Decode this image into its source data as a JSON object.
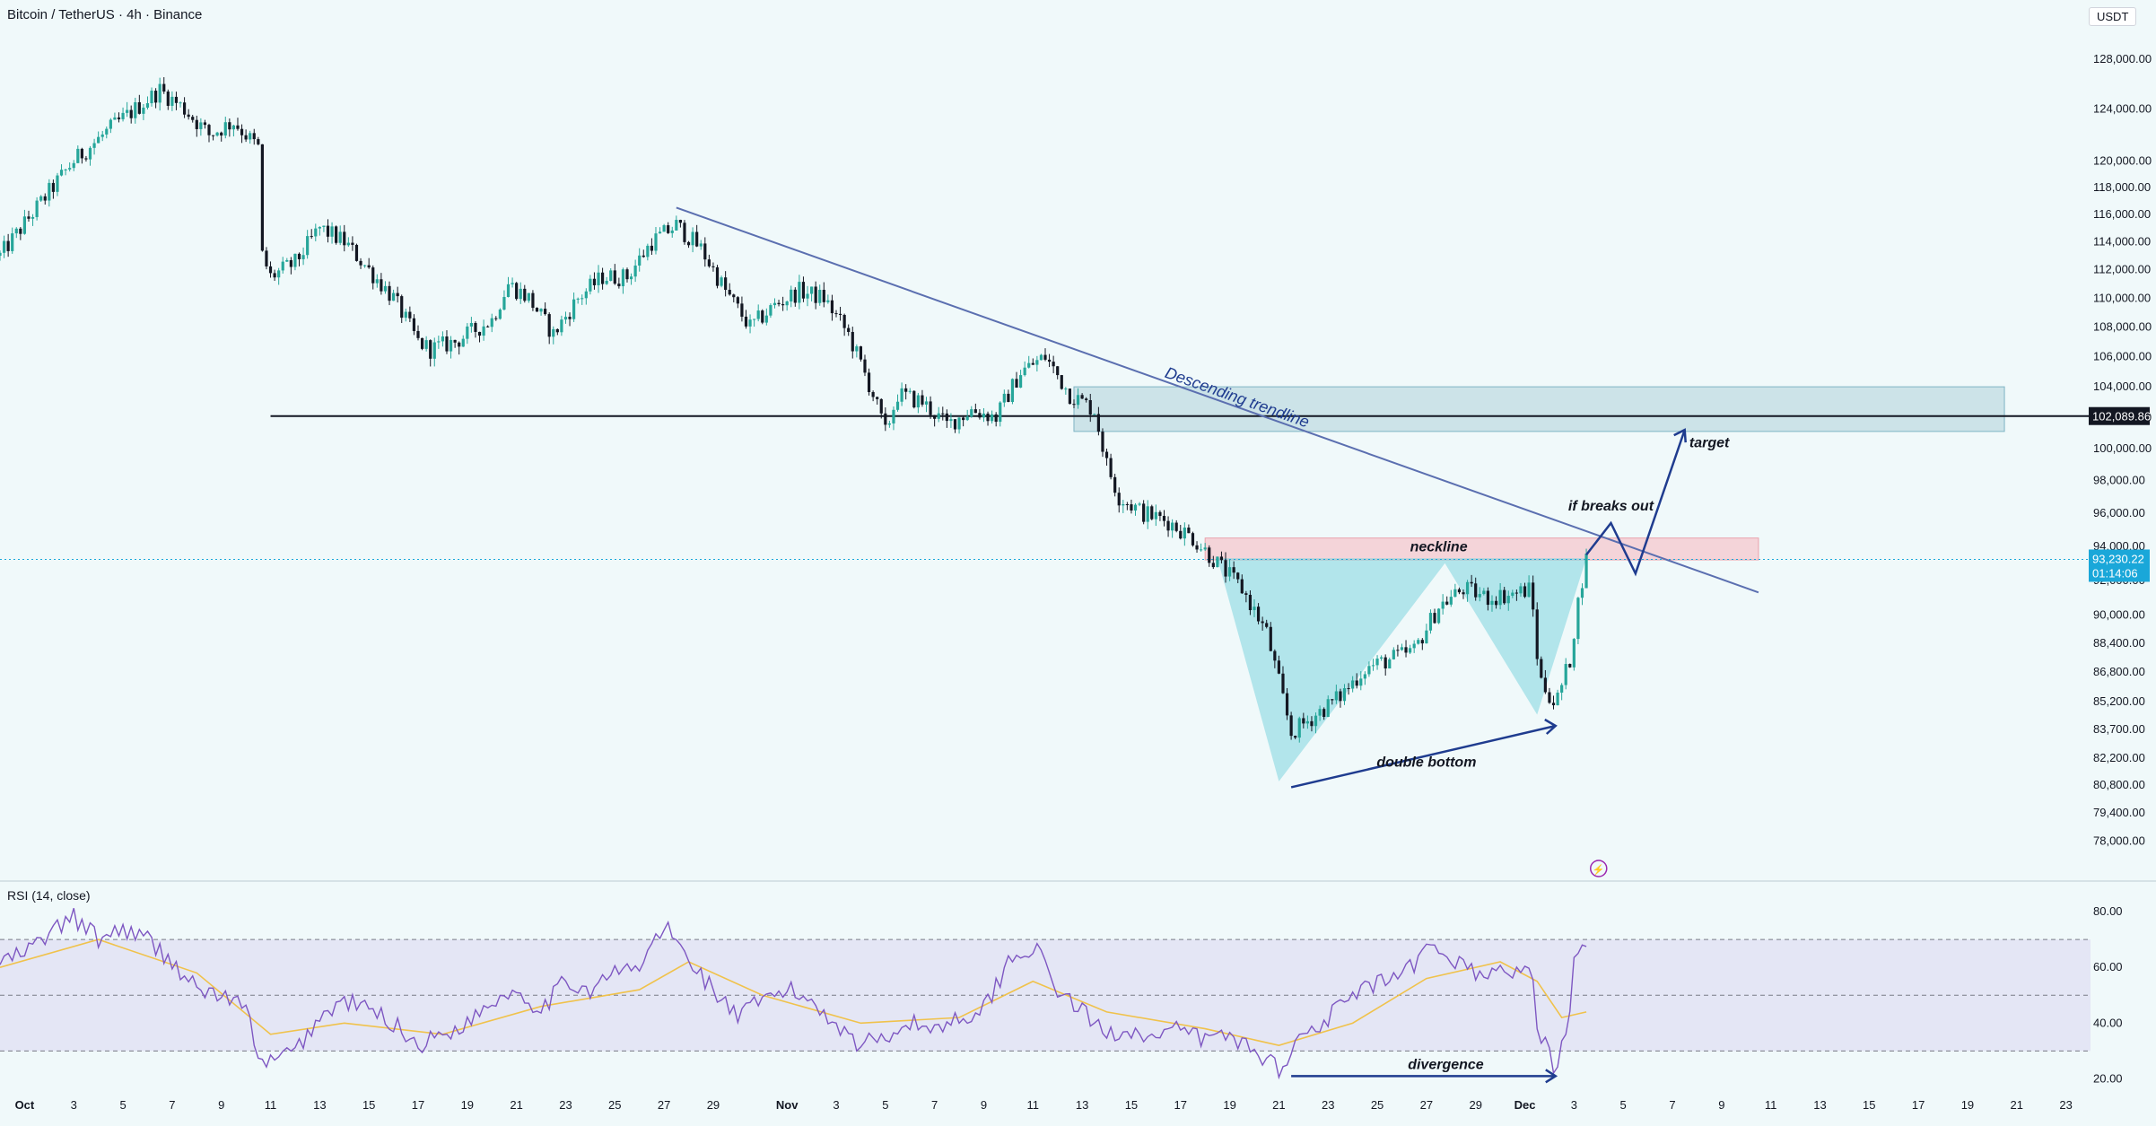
{
  "header": {
    "symbol_line": "Bitcoin / TetherUS · 4h · Binance",
    "currency_button": "USDT"
  },
  "rsi_panel": {
    "title": "RSI (14, close)"
  },
  "colors": {
    "up": "#26a69a",
    "down": "#131722",
    "trendline": "#5b6fb0",
    "annotation": "#1f3c8f",
    "pattern_fill": "#7fd6de",
    "neckline_zone": "#f6c7cd",
    "target_zone": "#9fc7d3",
    "rsi_line": "#7e57c2",
    "rsi_ma": "#f0c24b",
    "rsi_band": "#dcd8f2",
    "price_tag": "#1aa7d9"
  },
  "current_price": {
    "value": "93,230.22",
    "countdown": "01:14:06"
  },
  "support_label": "102,089.86",
  "annotations": {
    "trendline": "Descending trendline",
    "neckline": "neckline",
    "breakout": "if breaks out",
    "target": "target",
    "double_bottom": "double bottom",
    "divergence": "divergence"
  },
  "chart_data": [
    {
      "type": "candlestick",
      "title": "Bitcoin / TetherUS · 4h · Binance",
      "y_axis": {
        "scale": "log",
        "ylim": [
          77000,
          131000
        ],
        "ticks": [
          128000,
          124000,
          120000,
          118000,
          116000,
          114000,
          112000,
          110000,
          108000,
          106000,
          104000,
          102000,
          100000,
          98000,
          96000,
          94000,
          92000,
          90000,
          88400,
          86800,
          85200,
          83700,
          82200,
          80800,
          79400,
          78000
        ],
        "tick_labels": [
          "128,000.00",
          "124,000.00",
          "120,000.00",
          "118,000.00",
          "116,000.00",
          "114,000.00",
          "112,000.00",
          "110,000.00",
          "108,000.00",
          "106,000.00",
          "104,000.00",
          "102,000.00",
          "100,000.00",
          "98,000.00",
          "96,000.00",
          "94,000.00",
          "92,000.00",
          "90,000.00",
          "88,400.00",
          "86,800.00",
          "85,200.00",
          "83,700.00",
          "82,200.00",
          "80,800.00",
          "79,400.00",
          "78,000.00"
        ]
      },
      "x_axis": {
        "start": "2025-09-30",
        "end": "2025-12-24",
        "ticks": [
          "2025-10-01",
          "2025-10-03",
          "2025-10-05",
          "2025-10-07",
          "2025-10-09",
          "2025-10-11",
          "2025-10-13",
          "2025-10-15",
          "2025-10-17",
          "2025-10-19",
          "2025-10-21",
          "2025-10-23",
          "2025-10-25",
          "2025-10-27",
          "2025-10-29",
          "2025-11-01",
          "2025-11-03",
          "2025-11-05",
          "2025-11-07",
          "2025-11-09",
          "2025-11-11",
          "2025-11-13",
          "2025-11-15",
          "2025-11-17",
          "2025-11-19",
          "2025-11-21",
          "2025-11-23",
          "2025-11-25",
          "2025-11-27",
          "2025-11-29",
          "2025-12-01",
          "2025-12-03",
          "2025-12-05",
          "2025-12-07",
          "2025-12-09",
          "2025-12-11",
          "2025-12-13",
          "2025-12-15",
          "2025-12-17",
          "2025-12-19",
          "2025-12-21",
          "2025-12-23"
        ],
        "tick_labels": [
          "Oct",
          "3",
          "5",
          "7",
          "9",
          "11",
          "13",
          "15",
          "17",
          "19",
          "21",
          "23",
          "25",
          "27",
          "29",
          "Nov",
          "3",
          "5",
          "7",
          "9",
          "11",
          "13",
          "15",
          "17",
          "19",
          "21",
          "23",
          "25",
          "27",
          "29",
          "Dec",
          "3",
          "5",
          "7",
          "9",
          "11",
          "13",
          "15",
          "17",
          "19",
          "21",
          "23"
        ]
      },
      "price_path": [
        [
          "2025-09-30 00:00",
          113000
        ],
        [
          "2025-10-01 12:00",
          116500
        ],
        [
          "2025-10-03 00:00",
          120000
        ],
        [
          "2025-10-04 12:00",
          122500
        ],
        [
          "2025-10-06 12:00",
          125500
        ],
        [
          "2025-10-07 12:00",
          124000
        ],
        [
          "2025-10-08 12:00",
          122000
        ],
        [
          "2025-10-09 12:00",
          123000
        ],
        [
          "2025-10-10 12:00",
          121000
        ],
        [
          "2025-10-10 16:00",
          113000
        ],
        [
          "2025-10-11 00:00",
          111500
        ],
        [
          "2025-10-12 00:00",
          112500
        ],
        [
          "2025-10-13 00:00",
          115000
        ],
        [
          "2025-10-14 00:00",
          114000
        ],
        [
          "2025-10-15 00:00",
          112000
        ],
        [
          "2025-10-16 00:00",
          110000
        ],
        [
          "2025-10-17 00:00",
          107000
        ],
        [
          "2025-10-17 12:00",
          106500
        ],
        [
          "2025-10-18 12:00",
          107000
        ],
        [
          "2025-10-20 00:00",
          108500
        ],
        [
          "2025-10-20 16:00",
          111000
        ],
        [
          "2025-10-21 12:00",
          110000
        ],
        [
          "2025-10-22 12:00",
          107500
        ],
        [
          "2025-10-23 12:00",
          110000
        ],
        [
          "2025-10-24 12:00",
          111500
        ],
        [
          "2025-10-25 12:00",
          111500
        ],
        [
          "2025-10-26 12:00",
          114000
        ],
        [
          "2025-10-27 12:00",
          115200
        ],
        [
          "2025-10-28 12:00",
          113500
        ],
        [
          "2025-10-29 12:00",
          110500
        ],
        [
          "2025-10-30 12:00",
          108000
        ],
        [
          "2025-10-31 12:00",
          109500
        ],
        [
          "2025-11-01 12:00",
          110500
        ],
        [
          "2025-11-02 12:00",
          110000
        ],
        [
          "2025-11-03 12:00",
          107500
        ],
        [
          "2025-11-04 12:00",
          103500
        ],
        [
          "2025-11-05 00:00",
          101000
        ],
        [
          "2025-11-05 12:00",
          103500
        ],
        [
          "2025-11-06 12:00",
          103000
        ],
        [
          "2025-11-07 12:00",
          101500
        ],
        [
          "2025-11-08 12:00",
          102500
        ],
        [
          "2025-11-09 12:00",
          102000
        ],
        [
          "2025-11-10 12:00",
          105000
        ],
        [
          "2025-11-11 12:00",
          106000
        ],
        [
          "2025-11-12 12:00",
          103500
        ],
        [
          "2025-11-13 12:00",
          102500
        ],
        [
          "2025-11-14 00:00",
          99000
        ],
        [
          "2025-11-14 12:00",
          97000
        ],
        [
          "2025-11-15 12:00",
          96000
        ],
        [
          "2025-11-16 12:00",
          95500
        ],
        [
          "2025-11-17 12:00",
          94500
        ],
        [
          "2025-11-18 12:00",
          93000
        ],
        [
          "2025-11-19 12:00",
          91500
        ],
        [
          "2025-11-20 12:00",
          89000
        ],
        [
          "2025-11-21 12:00",
          83500
        ],
        [
          "2025-11-22 12:00",
          84500
        ],
        [
          "2025-11-23 12:00",
          85500
        ],
        [
          "2025-11-24 12:00",
          87000
        ],
        [
          "2025-11-25 12:00",
          87500
        ],
        [
          "2025-11-26 12:00",
          88000
        ],
        [
          "2025-11-27 12:00",
          90500
        ],
        [
          "2025-11-28 12:00",
          91500
        ],
        [
          "2025-11-29 12:00",
          91000
        ],
        [
          "2025-11-30 12:00",
          91200
        ],
        [
          "2025-12-01 06:00",
          91500
        ],
        [
          "2025-12-01 14:00",
          86500
        ],
        [
          "2025-12-02 06:00",
          85000
        ],
        [
          "2025-12-02 20:00",
          87500
        ],
        [
          "2025-12-03 06:00",
          91500
        ],
        [
          "2025-12-03 12:00",
          93230
        ]
      ],
      "horizontal_line": {
        "price": 102089.86,
        "from": "2025-10-11"
      },
      "zones": [
        {
          "name": "target zone",
          "from": "2025-11-12 16:00",
          "to": "2025-12-20 12:00",
          "top": 104000,
          "bottom": 101100
        },
        {
          "name": "neckline",
          "from": "2025-11-18",
          "to": "2025-12-10 12:00",
          "top": 94500,
          "bottom": 93200
        }
      ],
      "trendline": [
        [
          "2025-10-27 12:00",
          116500
        ],
        [
          "2025-12-10 12:00",
          91300
        ]
      ],
      "double_bottom": [
        [
          "2025-11-21 12:00",
          80700
        ],
        [
          "2025-12-02 06:00",
          83900
        ]
      ],
      "projection": [
        [
          "2025-12-03 12:00",
          93500
        ],
        [
          "2025-12-04 12:00",
          95400
        ],
        [
          "2025-12-05 12:00",
          92400
        ],
        [
          "2025-12-07 12:00",
          101200
        ]
      ],
      "pattern_fill": [
        [
          "2025-11-18 12:00",
          93300
        ],
        [
          "2025-11-21 00:00",
          81000
        ],
        [
          "2025-11-27 18:00",
          93000
        ],
        [
          "2025-12-01 12:00",
          84500
        ],
        [
          "2025-12-03 12:00",
          93300
        ]
      ]
    },
    {
      "type": "line",
      "title": "RSI (14, close)",
      "ylim": [
        15,
        90
      ],
      "ticks": [
        80,
        60,
        40,
        20
      ],
      "tick_labels": [
        "80.00",
        "60.00",
        "40.00",
        "20.00"
      ],
      "levels": [
        70,
        50,
        30
      ],
      "series": [
        {
          "name": "RSI",
          "points": [
            [
              "2025-09-30",
              62
            ],
            [
              "2025-10-01",
              65
            ],
            [
              "2025-10-02",
              72
            ],
            [
              "2025-10-03",
              78
            ],
            [
              "2025-10-04",
              70
            ],
            [
              "2025-10-05",
              74
            ],
            [
              "2025-10-06",
              70
            ],
            [
              "2025-10-07",
              62
            ],
            [
              "2025-10-08",
              52
            ],
            [
              "2025-10-09",
              50
            ],
            [
              "2025-10-10",
              45
            ],
            [
              "2025-10-10 18:00",
              22
            ],
            [
              "2025-10-11",
              26
            ],
            [
              "2025-10-12",
              30
            ],
            [
              "2025-10-13",
              42
            ],
            [
              "2025-10-14",
              48
            ],
            [
              "2025-10-15",
              45
            ],
            [
              "2025-10-16",
              40
            ],
            [
              "2025-10-17",
              32
            ],
            [
              "2025-10-18",
              36
            ],
            [
              "2025-10-19",
              40
            ],
            [
              "2025-10-20",
              48
            ],
            [
              "2025-10-21",
              52
            ],
            [
              "2025-10-22",
              45
            ],
            [
              "2025-10-23",
              55
            ],
            [
              "2025-10-24",
              52
            ],
            [
              "2025-10-25",
              58
            ],
            [
              "2025-10-26",
              60
            ],
            [
              "2025-10-27",
              75
            ],
            [
              "2025-10-28",
              63
            ],
            [
              "2025-10-29",
              52
            ],
            [
              "2025-10-30",
              42
            ],
            [
              "2025-10-31",
              48
            ],
            [
              "2025-11-01",
              52
            ],
            [
              "2025-11-02",
              48
            ],
            [
              "2025-11-03",
              40
            ],
            [
              "2025-11-04",
              32
            ],
            [
              "2025-11-05",
              36
            ],
            [
              "2025-11-06",
              40
            ],
            [
              "2025-11-07",
              38
            ],
            [
              "2025-11-08",
              42
            ],
            [
              "2025-11-09",
              45
            ],
            [
              "2025-11-10",
              62
            ],
            [
              "2025-11-11",
              68
            ],
            [
              "2025-11-12",
              52
            ],
            [
              "2025-11-13",
              44
            ],
            [
              "2025-11-14",
              36
            ],
            [
              "2025-11-15",
              38
            ],
            [
              "2025-11-16",
              34
            ],
            [
              "2025-11-17",
              38
            ],
            [
              "2025-11-18",
              34
            ],
            [
              "2025-11-19",
              36
            ],
            [
              "2025-11-20",
              30
            ],
            [
              "2025-11-21",
              24
            ],
            [
              "2025-11-22",
              36
            ],
            [
              "2025-11-23",
              42
            ],
            [
              "2025-11-24",
              50
            ],
            [
              "2025-11-25",
              54
            ],
            [
              "2025-11-26",
              56
            ],
            [
              "2025-11-27",
              66
            ],
            [
              "2025-11-28",
              64
            ],
            [
              "2025-11-29",
              58
            ],
            [
              "2025-11-30",
              58
            ],
            [
              "2025-12-01 06:00",
              60
            ],
            [
              "2025-12-01 12:00",
              38
            ],
            [
              "2025-12-02 06:00",
              24
            ],
            [
              "2025-12-02 18:00",
              40
            ],
            [
              "2025-12-03",
              62
            ],
            [
              "2025-12-03 12:00",
              67
            ]
          ]
        },
        {
          "name": "RSI-based MA",
          "points": [
            [
              "2025-09-30",
              60
            ],
            [
              "2025-10-04",
              70
            ],
            [
              "2025-10-08",
              58
            ],
            [
              "2025-10-11",
              36
            ],
            [
              "2025-10-14",
              40
            ],
            [
              "2025-10-18",
              36
            ],
            [
              "2025-10-22",
              46
            ],
            [
              "2025-10-26",
              52
            ],
            [
              "2025-10-28",
              62
            ],
            [
              "2025-10-31",
              50
            ],
            [
              "2025-11-04",
              40
            ],
            [
              "2025-11-08",
              42
            ],
            [
              "2025-11-11",
              55
            ],
            [
              "2025-11-14",
              44
            ],
            [
              "2025-11-18",
              38
            ],
            [
              "2025-11-21",
              32
            ],
            [
              "2025-11-24",
              40
            ],
            [
              "2025-11-27",
              56
            ],
            [
              "2025-11-30",
              62
            ],
            [
              "2025-12-01 12:00",
              55
            ],
            [
              "2025-12-02 12:00",
              42
            ],
            [
              "2025-12-03 12:00",
              44
            ]
          ]
        }
      ],
      "divergence": [
        [
          "2025-11-21 12:00",
          21
        ],
        [
          "2025-12-02 06:00",
          21
        ]
      ]
    }
  ]
}
